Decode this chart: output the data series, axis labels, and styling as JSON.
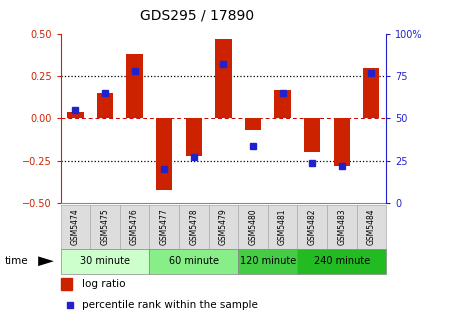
{
  "title": "GDS295 / 17890",
  "samples": [
    "GSM5474",
    "GSM5475",
    "GSM5476",
    "GSM5477",
    "GSM5478",
    "GSM5479",
    "GSM5480",
    "GSM5481",
    "GSM5482",
    "GSM5483",
    "GSM5484"
  ],
  "log_ratio": [
    0.04,
    0.15,
    0.38,
    -0.42,
    -0.22,
    0.47,
    -0.07,
    0.17,
    -0.2,
    -0.28,
    0.3
  ],
  "percentile": [
    55,
    65,
    78,
    20,
    27,
    82,
    34,
    65,
    24,
    22,
    77
  ],
  "bar_color": "#cc2200",
  "dot_color": "#2222cc",
  "ylim_left": [
    -0.5,
    0.5
  ],
  "ylim_right": [
    0,
    100
  ],
  "yticks_left": [
    -0.5,
    -0.25,
    0.0,
    0.25,
    0.5
  ],
  "yticks_right": [
    0,
    25,
    50,
    75,
    100
  ],
  "groups": [
    {
      "label": "30 minute",
      "start": 0,
      "end": 3,
      "color": "#ccffcc"
    },
    {
      "label": "60 minute",
      "start": 3,
      "end": 6,
      "color": "#88ee88"
    },
    {
      "label": "120 minute",
      "start": 6,
      "end": 8,
      "color": "#44cc44"
    },
    {
      "label": "240 minute",
      "start": 8,
      "end": 11,
      "color": "#22bb22"
    }
  ],
  "legend_log_ratio": "log ratio",
  "legend_percentile": "percentile rank within the sample",
  "bg_color": "#ffffff",
  "left_tick_color": "#cc2200",
  "right_tick_color": "#2222cc",
  "sample_box_color": "#dddddd",
  "sample_box_edge": "#aaaaaa"
}
